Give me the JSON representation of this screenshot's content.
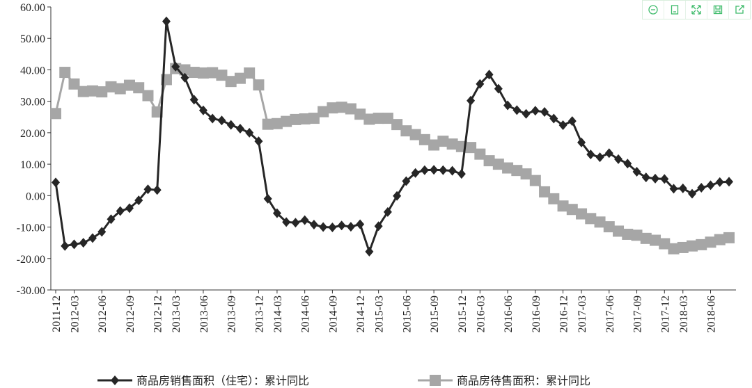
{
  "chart_data": {
    "type": "line",
    "categories": [
      "2011-12",
      null,
      "2012-03",
      null,
      null,
      "2012-06",
      null,
      null,
      "2012-09",
      null,
      null,
      "2012-12",
      null,
      "2013-03",
      null,
      null,
      "2013-06",
      null,
      null,
      "2013-09",
      null,
      null,
      "2013-12",
      null,
      "2014-03",
      null,
      null,
      "2014-06",
      null,
      null,
      "2014-09",
      null,
      null,
      "2014-12",
      null,
      "2015-03",
      null,
      null,
      "2015-06",
      null,
      null,
      "2015-09",
      null,
      null,
      "2015-12",
      null,
      "2016-03",
      null,
      null,
      "2016-06",
      null,
      null,
      "2016-09",
      null,
      null,
      "2016-12",
      null,
      "2017-03",
      null,
      null,
      "2017-06",
      null,
      null,
      "2017-09",
      null,
      null,
      "2017-12",
      null,
      "2018-03",
      null,
      null,
      "2018-06",
      null,
      null
    ],
    "series": [
      {
        "name": "商品房销售面积（住宅）：累计同比",
        "color": "#262626",
        "marker": "diamond",
        "values": [
          4.2,
          -16.0,
          -15.5,
          -15.0,
          -13.5,
          -11.5,
          -7.5,
          -4.9,
          -4.0,
          -1.5,
          2.0,
          1.8,
          55.4,
          41.0,
          37.5,
          30.5,
          27.1,
          24.5,
          23.9,
          22.5,
          21.3,
          20.0,
          17.3,
          -1.0,
          -5.6,
          -8.4,
          -8.6,
          -7.8,
          -9.2,
          -10.0,
          -10.1,
          -9.5,
          -9.9,
          -9.1,
          -17.8,
          -9.7,
          -5.2,
          -0.1,
          4.6,
          7.2,
          8.1,
          8.2,
          8.1,
          7.9,
          6.9,
          30.2,
          35.5,
          38.5,
          34.0,
          28.7,
          27.2,
          26.0,
          27.0,
          26.6,
          24.5,
          22.4,
          23.7,
          16.9,
          13.1,
          12.2,
          13.5,
          11.6,
          10.2,
          7.6,
          5.8,
          5.4,
          5.3,
          2.2,
          2.3,
          0.6,
          2.5,
          3.3,
          4.3,
          4.4
        ]
      },
      {
        "name": "商品房待售面积：累计同比",
        "color": "#a6a6a6",
        "marker": "square",
        "values": [
          26.1,
          39.2,
          35.5,
          33.1,
          33.3,
          33.0,
          34.6,
          34.0,
          35.1,
          34.3,
          31.8,
          26.6,
          36.9,
          40.4,
          40.0,
          39.2,
          39.0,
          39.1,
          38.3,
          36.3,
          37.3,
          39.0,
          35.2,
          22.7,
          22.9,
          23.6,
          24.2,
          24.4,
          24.6,
          26.7,
          27.9,
          28.1,
          27.6,
          25.9,
          24.3,
          24.6,
          24.6,
          22.6,
          20.6,
          19.4,
          17.8,
          16.1,
          17.3,
          16.4,
          15.6,
          15.3,
          13.2,
          11.1,
          10.0,
          8.8,
          8.0,
          6.9,
          4.8,
          1.2,
          -1.0,
          -3.3,
          -4.4,
          -5.8,
          -7.3,
          -8.4,
          -9.9,
          -11.3,
          -12.3,
          -12.6,
          -13.6,
          -14.2,
          -15.3,
          -16.9,
          -16.5,
          -16.0,
          -15.6,
          -14.8,
          -14.0,
          -13.4
        ]
      }
    ],
    "ylim": [
      -30,
      60
    ],
    "yticks": [
      {
        "value": -30,
        "label": "-30.00"
      },
      {
        "value": -20,
        "label": "-20.00"
      },
      {
        "value": -10,
        "label": "-10.00"
      },
      {
        "value": 0,
        "label": "0.00"
      },
      {
        "value": 10,
        "label": "10.00"
      },
      {
        "value": 20,
        "label": "20.00"
      },
      {
        "value": 30,
        "label": "30.00"
      },
      {
        "value": 40,
        "label": "40.00"
      },
      {
        "value": 50,
        "label": "50.00"
      },
      {
        "value": 60,
        "label": "60.00"
      }
    ],
    "grid": false,
    "legend": "bottom"
  }
}
